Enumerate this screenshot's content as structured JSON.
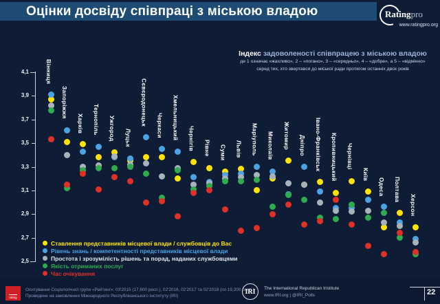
{
  "header": {
    "title": "Оцінки досвіду співпраці з міською владою",
    "brand": {
      "name_bold": "Rating",
      "name_light": "pro",
      "url": "www.ratingpro.org"
    }
  },
  "index_note": {
    "lead": "Індекс",
    "title_rest": " задоволеності співпрацею з міською владою",
    "scale_note": "де 1 означає «жахливо», 2 – «погано», 3 – «середньо», 4 – «добре», а 5 – «відмінно»",
    "sample_note": "серед тих, хто звертався до міської ради протягом останніх двох років"
  },
  "chart_data": {
    "type": "scatter",
    "title": "Індекс задоволеності співпрацею з міською владою",
    "xlabel": "",
    "ylabel": "",
    "ylim": [
      2.5,
      4.1
    ],
    "yticks": [
      4.1,
      3.9,
      3.7,
      3.5,
      3.3,
      3.1,
      2.9,
      2.7,
      2.5
    ],
    "ytick_labels": [
      "4,1",
      "3,9",
      "3,7",
      "3,5",
      "3,3",
      "3,1",
      "2,9",
      "2,7",
      "2,5"
    ],
    "grid": false,
    "legend_position": "bottom-left",
    "categories": [
      "Вінниця",
      "Запоріжжя",
      "Харків",
      "Тернопіль",
      "Ужгород",
      "Луцьк",
      "Сєвєродонецьк",
      "Черкаси",
      "Хмельницький",
      "Чернігів",
      "Рівне",
      "Суми",
      "Львів",
      "Маріуполь",
      "Миколаїв",
      "Житомир",
      "Дніпро",
      "Івано-Франківськ",
      "Кропивницький",
      "Чернівці",
      "Київ",
      "Одеса",
      "Полтава",
      "Херсон"
    ],
    "series": [
      {
        "name": "Ставлення представників місцевої влади / службовців до Вас",
        "color": "#ffe400",
        "values": [
          3.87,
          3.51,
          3.49,
          3.38,
          3.42,
          3.35,
          3.38,
          3.38,
          3.2,
          3.34,
          3.29,
          3.26,
          3.28,
          3.1,
          3.2,
          3.35,
          3.15,
          3.17,
          3.08,
          3.18,
          3.09,
          2.79,
          2.91,
          2.79
        ]
      },
      {
        "name": "Рівень знань / компетентності представників місцевої влади",
        "color": "#4ba3e3",
        "values": [
          3.91,
          3.61,
          3.43,
          3.47,
          3.38,
          3.37,
          3.55,
          3.45,
          3.43,
          3.21,
          3.17,
          3.23,
          3.24,
          3.3,
          3.26,
          3.07,
          3.3,
          3.09,
          2.95,
          2.95,
          3.02,
          2.96,
          2.83,
          2.69
        ]
      },
      {
        "name": "Простота і зрозумілість рішень та порад, наданих службовцями",
        "color": "#a9b2ba",
        "values": [
          3.82,
          3.4,
          3.3,
          3.31,
          3.39,
          3.32,
          3.33,
          3.22,
          3.29,
          3.15,
          3.16,
          3.2,
          3.21,
          3.23,
          3.22,
          3.16,
          3.15,
          3.0,
          2.93,
          2.92,
          2.93,
          2.83,
          2.8,
          2.66
        ]
      },
      {
        "name": "Якість отриманих послуг",
        "color": "#2fac4f",
        "values": [
          3.78,
          3.12,
          3.27,
          3.29,
          3.29,
          3.3,
          3.24,
          3.04,
          3.27,
          3.11,
          3.14,
          3.18,
          3.18,
          3.19,
          2.96,
          3.06,
          3.02,
          2.87,
          2.86,
          2.98,
          2.87,
          2.91,
          2.7,
          2.56
        ]
      },
      {
        "name": "Час очікування",
        "color": "#e03127",
        "values": [
          3.53,
          3.15,
          3.24,
          3.11,
          3.21,
          3.18,
          3.0,
          3.01,
          2.88,
          3.08,
          3.1,
          2.94,
          2.76,
          2.78,
          2.9,
          2.98,
          2.81,
          2.84,
          3.02,
          2.81,
          2.63,
          2.56,
          2.74,
          2.58
        ]
      }
    ]
  },
  "legend": {
    "items": [
      {
        "label": "Ставлення представників місцевої влади / службовців до Вас",
        "marker_color": "#ffe400",
        "text_color": "#ffe400"
      },
      {
        "label": "Рівень знань / компетентності представників місцевої влади",
        "marker_color": "#4ba3e3",
        "text_color": "#4ba3e3"
      },
      {
        "label": "Простота і зрозумілість рішень та порад, наданих службовцями",
        "marker_color": "#a9b2ba",
        "text_color": "#dfe5ec"
      },
      {
        "label": "Якість отриманих послуг",
        "marker_color": "#2fac4f",
        "text_color": "#2fac4f"
      },
      {
        "label": "Час очікування",
        "marker_color": "#e03127",
        "text_color": "#e03127"
      }
    ]
  },
  "footer": {
    "logo_text": "rating",
    "survey_line1": "Опитування Соціологічної групи «Рейтинг»: 03'2015 (17,600 респ.), 02'2016, 02'2017 та 02'2018 (по 19,200 респ.)",
    "survey_line2": "Проведене на замовлення Міжнародного Республіканського Інституту (IRI)",
    "iri_abbr": "IRI",
    "iri_name": "The International Republican Institute",
    "iri_links": "www.IRI.org | @IRI_Polls",
    "page_number": "22"
  },
  "colors": {
    "background": "#0e1c36",
    "title_band": "#1d4b73",
    "axis": "#c8d0da"
  }
}
